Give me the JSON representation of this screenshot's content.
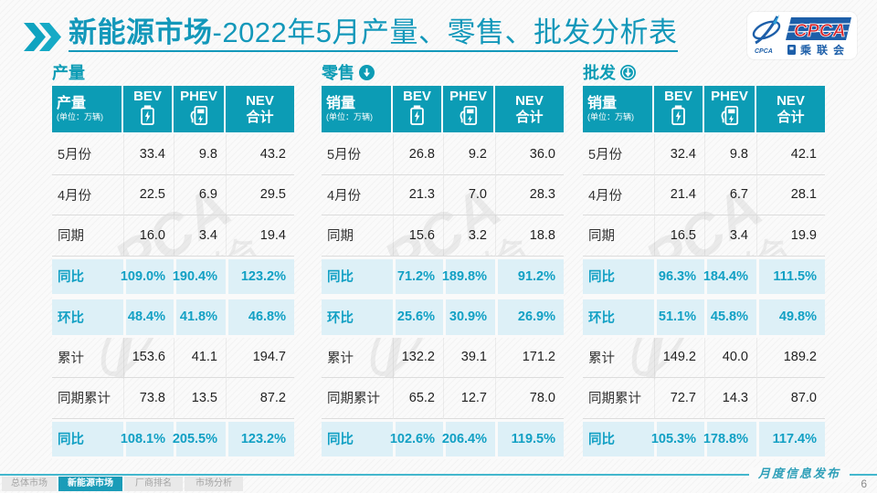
{
  "title": {
    "highlight": "新能源市场",
    "rest": "-2022年5月产量、零售、批发分析表"
  },
  "logo": {
    "brand": "CPCA",
    "brand_sub": "乘联会",
    "icon_caption": "CPCA"
  },
  "colors": {
    "accent": "#0d9cb5",
    "highlight_bg": "#ddf0f7",
    "highlight_text": "#12a0c4",
    "logo_blue": "#1d5fa9",
    "logo_red": "#e8252a"
  },
  "sections": [
    {
      "name": "产量",
      "has_arrow": false,
      "arrow_style": "none",
      "measure_label": "产量",
      "unit": "(单位：万辆)",
      "columns": [
        {
          "label": "BEV",
          "icon": "battery-icon"
        },
        {
          "label": "PHEV",
          "icon": "charging-station-icon"
        },
        {
          "label": "NEV",
          "label2": "合计",
          "icon": null
        }
      ],
      "rows": [
        {
          "label": "5月份",
          "values": [
            "33.4",
            "9.8",
            "43.2"
          ],
          "highlight": false
        },
        {
          "label": "4月份",
          "values": [
            "22.5",
            "6.9",
            "29.5"
          ],
          "highlight": false
        },
        {
          "label": "同期",
          "values": [
            "16.0",
            "3.4",
            "19.4"
          ],
          "highlight": false
        },
        {
          "label": "同比",
          "values": [
            "109.0%",
            "190.4%",
            "123.2%"
          ],
          "highlight": true
        },
        {
          "label": "环比",
          "values": [
            "48.4%",
            "41.8%",
            "46.8%"
          ],
          "highlight": true
        },
        {
          "label": "累计",
          "values": [
            "153.6",
            "41.1",
            "194.7"
          ],
          "highlight": false
        },
        {
          "label": "同期累计",
          "values": [
            "73.8",
            "13.5",
            "87.2"
          ],
          "highlight": false
        },
        {
          "label": "同比",
          "values": [
            "108.1%",
            "205.5%",
            "123.2%"
          ],
          "highlight": true
        }
      ]
    },
    {
      "name": "零售",
      "has_arrow": true,
      "arrow_style": "solid",
      "measure_label": "销量",
      "unit": "(单位：万辆)",
      "columns": [
        {
          "label": "BEV",
          "icon": "battery-icon"
        },
        {
          "label": "PHEV",
          "icon": "charging-station-icon"
        },
        {
          "label": "NEV",
          "label2": "合计",
          "icon": null
        }
      ],
      "rows": [
        {
          "label": "5月份",
          "values": [
            "26.8",
            "9.2",
            "36.0"
          ],
          "highlight": false
        },
        {
          "label": "4月份",
          "values": [
            "21.3",
            "7.0",
            "28.3"
          ],
          "highlight": false
        },
        {
          "label": "同期",
          "values": [
            "15.6",
            "3.2",
            "18.8"
          ],
          "highlight": false
        },
        {
          "label": "同比",
          "values": [
            "71.2%",
            "189.8%",
            "91.2%"
          ],
          "highlight": true
        },
        {
          "label": "环比",
          "values": [
            "25.6%",
            "30.9%",
            "26.9%"
          ],
          "highlight": true
        },
        {
          "label": "累计",
          "values": [
            "132.2",
            "39.1",
            "171.2"
          ],
          "highlight": false
        },
        {
          "label": "同期累计",
          "values": [
            "65.2",
            "12.7",
            "78.0"
          ],
          "highlight": false
        },
        {
          "label": "同比",
          "values": [
            "102.6%",
            "206.4%",
            "119.5%"
          ],
          "highlight": true
        }
      ]
    },
    {
      "name": "批发",
      "has_arrow": true,
      "arrow_style": "ring",
      "measure_label": "销量",
      "unit": "(单位：万辆)",
      "columns": [
        {
          "label": "BEV",
          "icon": "battery-icon"
        },
        {
          "label": "PHEV",
          "icon": "charging-station-icon"
        },
        {
          "label": "NEV",
          "label2": "合计",
          "icon": null
        }
      ],
      "rows": [
        {
          "label": "5月份",
          "values": [
            "32.4",
            "9.8",
            "42.1"
          ],
          "highlight": false
        },
        {
          "label": "4月份",
          "values": [
            "21.4",
            "6.7",
            "28.1"
          ],
          "highlight": false
        },
        {
          "label": "同期",
          "values": [
            "16.5",
            "3.4",
            "19.9"
          ],
          "highlight": false
        },
        {
          "label": "同比",
          "values": [
            "96.3%",
            "184.4%",
            "111.5%"
          ],
          "highlight": true
        },
        {
          "label": "环比",
          "values": [
            "51.1%",
            "45.8%",
            "49.8%"
          ],
          "highlight": true
        },
        {
          "label": "累计",
          "values": [
            "149.2",
            "40.0",
            "189.2"
          ],
          "highlight": false
        },
        {
          "label": "同期累计",
          "values": [
            "72.7",
            "14.3",
            "87.0"
          ],
          "highlight": false
        },
        {
          "label": "同比",
          "values": [
            "105.3%",
            "178.8%",
            "117.4%"
          ],
          "highlight": true
        }
      ]
    }
  ],
  "footer": {
    "tabs": [
      {
        "label": "总体市场",
        "active": false
      },
      {
        "label": "新能源市场",
        "active": true
      },
      {
        "label": "厂商排名",
        "active": false
      },
      {
        "label": "市场分析",
        "active": false
      }
    ],
    "publish_label": "月度信息发布",
    "page_number": "6"
  }
}
